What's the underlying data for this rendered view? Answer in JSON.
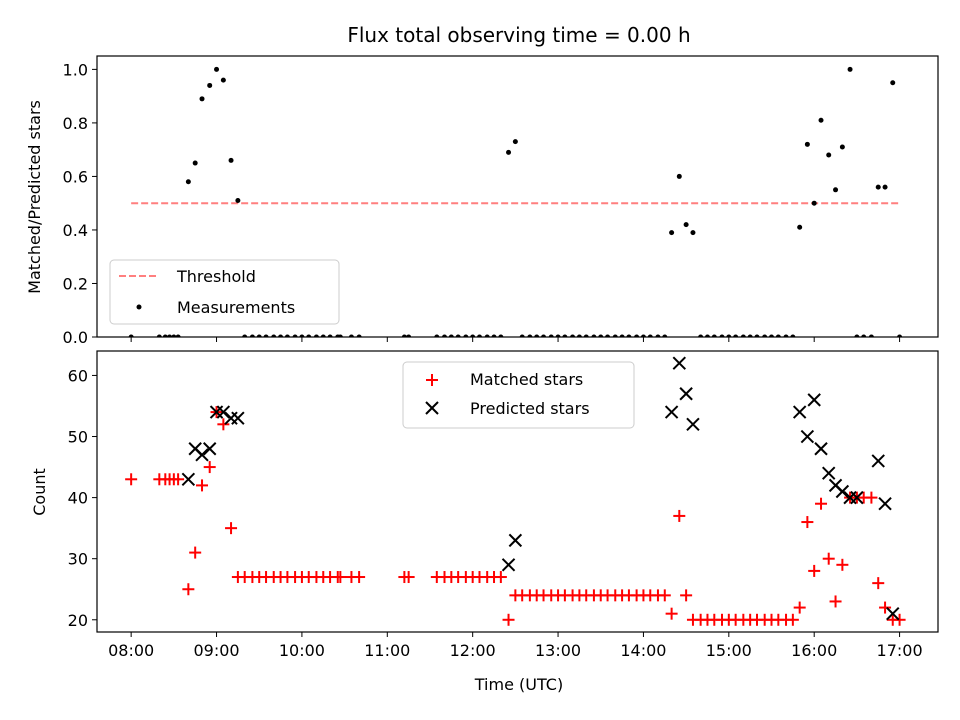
{
  "chart_data": [
    {
      "type": "scatter",
      "title": "Flux total observing time = 0.00 h",
      "xlabel": "",
      "ylabel": "Matched/Predicted stars",
      "xlim": [
        7.6,
        17.45
      ],
      "ylim": [
        0.0,
        1.05
      ],
      "xticks": [
        "08:00",
        "09:00",
        "10:00",
        "11:00",
        "12:00",
        "13:00",
        "14:00",
        "15:00",
        "16:00",
        "17:00"
      ],
      "yticks": [
        "0.0",
        "0.2",
        "0.4",
        "0.6",
        "0.8",
        "1.0"
      ],
      "legend_position": "lower-left",
      "threshold": {
        "name": "Threshold",
        "y": 0.5,
        "x": [
          8.0,
          17.0
        ],
        "color": "#ff7f7f"
      },
      "series": [
        {
          "name": "Measurements",
          "color": "#000000",
          "x": [
            8.0,
            8.33,
            8.4,
            8.45,
            8.5,
            8.55,
            8.67,
            8.75,
            8.83,
            8.92,
            9.0,
            9.08,
            9.17,
            9.25,
            9.33,
            9.42,
            9.5,
            9.58,
            9.67,
            9.75,
            9.83,
            9.92,
            10.0,
            10.08,
            10.17,
            10.25,
            10.33,
            10.42,
            10.45,
            10.58,
            10.67,
            11.2,
            11.25,
            11.58,
            11.67,
            11.75,
            11.83,
            11.92,
            12.0,
            12.08,
            12.17,
            12.25,
            12.33,
            12.42,
            12.5,
            12.58,
            12.67,
            12.75,
            12.83,
            12.92,
            13.0,
            13.08,
            13.17,
            13.25,
            13.33,
            13.42,
            13.5,
            13.58,
            13.67,
            13.75,
            13.83,
            13.92,
            14.0,
            14.08,
            14.17,
            14.25,
            14.33,
            14.42,
            14.5,
            14.58,
            14.67,
            14.75,
            14.83,
            14.92,
            15.0,
            15.08,
            15.17,
            15.25,
            15.33,
            15.42,
            15.5,
            15.58,
            15.67,
            15.75,
            15.83,
            15.92,
            16.0,
            16.08,
            16.17,
            16.25,
            16.33,
            16.42,
            16.5,
            16.58,
            16.67,
            16.75,
            16.83,
            16.92,
            17.0
          ],
          "y": [
            0,
            0,
            0,
            0,
            0,
            0,
            0.58,
            0.65,
            0.89,
            0.94,
            1.0,
            0.96,
            0.66,
            0.51,
            0,
            0,
            0,
            0,
            0,
            0,
            0,
            0,
            0,
            0,
            0,
            0,
            0,
            0,
            0,
            0,
            0,
            0,
            0,
            0,
            0,
            0,
            0,
            0,
            0,
            0,
            0,
            0,
            0,
            0.69,
            0.73,
            0,
            0,
            0,
            0,
            0,
            0,
            0,
            0,
            0,
            0,
            0,
            0,
            0,
            0,
            0,
            0,
            0,
            0,
            0,
            0,
            0,
            0.39,
            0.6,
            0.42,
            0.39,
            0,
            0,
            0,
            0,
            0,
            0,
            0,
            0,
            0,
            0,
            0,
            0,
            0,
            0,
            0.41,
            0.72,
            0.5,
            0.81,
            0.68,
            0.55,
            0.71,
            1.0,
            0,
            0,
            0,
            0.56,
            0.56,
            0.95,
            0
          ]
        }
      ]
    },
    {
      "type": "scatter",
      "title": "",
      "xlabel": "Time (UTC)",
      "ylabel": "Count",
      "xlim": [
        7.6,
        17.45
      ],
      "ylim": [
        18,
        64
      ],
      "xticks": [
        "08:00",
        "09:00",
        "10:00",
        "11:00",
        "12:00",
        "13:00",
        "14:00",
        "15:00",
        "16:00",
        "17:00"
      ],
      "yticks": [
        "20",
        "30",
        "40",
        "50",
        "60"
      ],
      "legend_position": "top-center",
      "series": [
        {
          "name": "Matched stars",
          "marker": "plus",
          "color": "#ff0000",
          "x": [
            8.0,
            8.33,
            8.4,
            8.45,
            8.5,
            8.55,
            8.67,
            8.75,
            8.83,
            8.92,
            9.0,
            9.08,
            9.17,
            9.25,
            9.33,
            9.42,
            9.5,
            9.58,
            9.67,
            9.75,
            9.83,
            9.92,
            10.0,
            10.08,
            10.17,
            10.25,
            10.33,
            10.42,
            10.45,
            10.58,
            10.67,
            11.2,
            11.25,
            11.58,
            11.67,
            11.75,
            11.83,
            11.92,
            12.0,
            12.08,
            12.17,
            12.25,
            12.33,
            12.42,
            12.5,
            12.58,
            12.67,
            12.75,
            12.83,
            12.92,
            13.0,
            13.08,
            13.17,
            13.25,
            13.33,
            13.42,
            13.5,
            13.58,
            13.67,
            13.75,
            13.83,
            13.92,
            14.0,
            14.08,
            14.17,
            14.25,
            14.33,
            14.42,
            14.5,
            14.58,
            14.67,
            14.75,
            14.83,
            14.92,
            15.0,
            15.08,
            15.17,
            15.25,
            15.33,
            15.42,
            15.5,
            15.58,
            15.67,
            15.75,
            15.83,
            15.92,
            16.0,
            16.08,
            16.17,
            16.25,
            16.33,
            16.42,
            16.5,
            16.58,
            16.67,
            16.75,
            16.83,
            16.92,
            17.0
          ],
          "y": [
            43,
            43,
            43,
            43,
            43,
            43,
            25,
            31,
            42,
            45,
            54,
            52,
            35,
            27,
            27,
            27,
            27,
            27,
            27,
            27,
            27,
            27,
            27,
            27,
            27,
            27,
            27,
            27,
            27,
            27,
            27,
            27,
            27,
            27,
            27,
            27,
            27,
            27,
            27,
            27,
            27,
            27,
            27,
            20,
            24,
            24,
            24,
            24,
            24,
            24,
            24,
            24,
            24,
            24,
            24,
            24,
            24,
            24,
            24,
            24,
            24,
            24,
            24,
            24,
            24,
            24,
            21,
            37,
            24,
            20,
            20,
            20,
            20,
            20,
            20,
            20,
            20,
            20,
            20,
            20,
            20,
            20,
            20,
            20,
            22,
            36,
            28,
            39,
            30,
            23,
            29,
            40,
            40,
            40,
            40,
            26,
            22,
            20,
            20
          ]
        },
        {
          "name": "Predicted stars",
          "marker": "x",
          "color": "#000000",
          "x": [
            8.67,
            8.75,
            8.83,
            8.92,
            9.0,
            9.08,
            9.17,
            9.25,
            12.42,
            12.5,
            14.33,
            14.42,
            14.5,
            14.58,
            15.83,
            15.92,
            16.0,
            16.08,
            16.17,
            16.25,
            16.33,
            16.42,
            16.5,
            16.75,
            16.83,
            16.92
          ],
          "y": [
            43,
            48,
            47,
            48,
            54,
            54,
            53,
            53,
            29,
            33,
            54,
            62,
            57,
            52,
            54,
            50,
            56,
            48,
            44,
            42,
            41,
            40,
            40,
            46,
            39,
            21
          ]
        }
      ]
    }
  ]
}
